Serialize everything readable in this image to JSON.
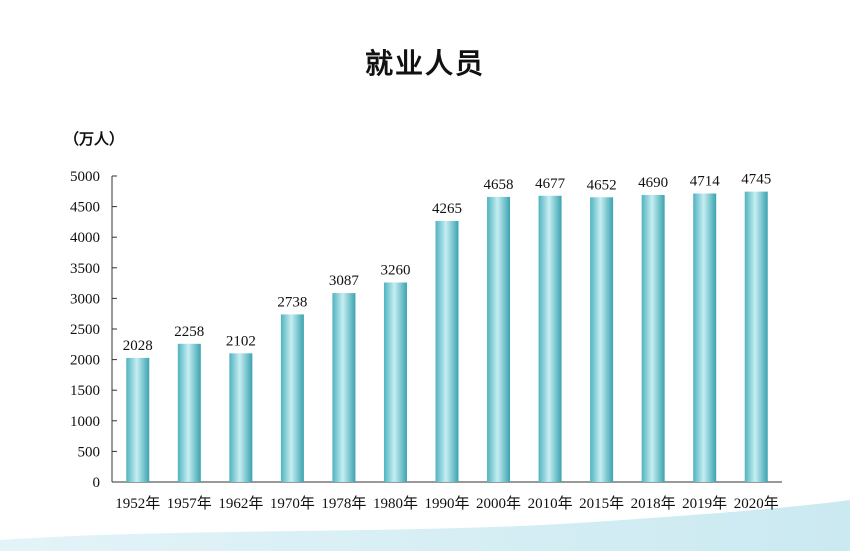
{
  "chart_data": {
    "type": "bar",
    "title": "就业人员",
    "ylabel": "（万人）",
    "xlabel": "",
    "categories": [
      "1952年",
      "1957年",
      "1962年",
      "1970年",
      "1978年",
      "1980年",
      "1990年",
      "2000年",
      "2010年",
      "2015年",
      "2018年",
      "2019年",
      "2020年"
    ],
    "values": [
      2028,
      2258,
      2102,
      2738,
      3087,
      3260,
      4265,
      4658,
      4677,
      4652,
      4690,
      4714,
      4745
    ],
    "ylim": [
      0,
      5000
    ],
    "yticks": [
      "0",
      "500",
      "1000",
      "1500",
      "2000",
      "2500",
      "3000",
      "3500",
      "4000",
      "4500",
      "5000"
    ],
    "grid": false,
    "bar_color": "#7fcad3"
  }
}
